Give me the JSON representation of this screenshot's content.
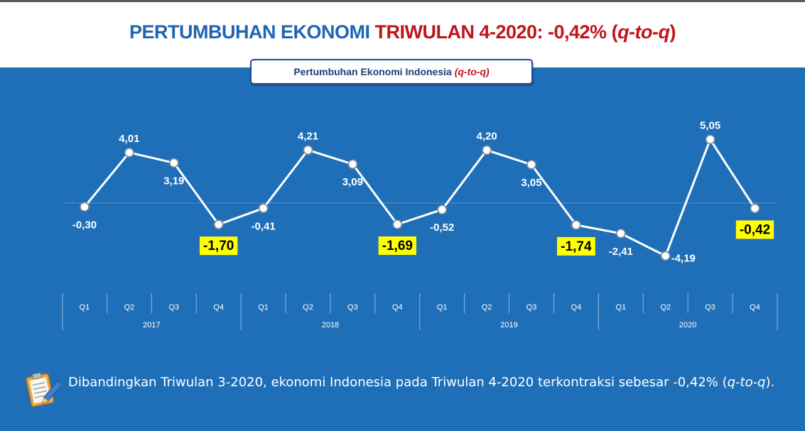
{
  "header": {
    "title_part1": "PERTUMBUHAN EKONOMI",
    "title_part2": " TRIWULAN 4-2020: -0,42% (",
    "title_part3": "q-to-q",
    "title_part4": ")"
  },
  "subtitle": {
    "text": "Pertumbuhan Ekonomi Indonesia ",
    "suffix": "(q-to-q)"
  },
  "chart_data": {
    "type": "line",
    "title": "Pertumbuhan Ekonomi Indonesia (q-to-q)",
    "years": [
      "2017",
      "2018",
      "2019",
      "2020"
    ],
    "categories": [
      "Q1",
      "Q2",
      "Q3",
      "Q4",
      "Q1",
      "Q2",
      "Q3",
      "Q4",
      "Q1",
      "Q2",
      "Q3",
      "Q4",
      "Q1",
      "Q2",
      "Q3",
      "Q4"
    ],
    "values": [
      -0.3,
      4.01,
      3.19,
      -1.7,
      -0.41,
      4.21,
      3.09,
      -1.69,
      -0.52,
      4.2,
      3.05,
      -1.74,
      -2.41,
      -4.19,
      5.05,
      -0.42
    ],
    "labels": [
      "-0,30",
      "4,01",
      "3,19",
      "-1,70",
      "-0,41",
      "4,21",
      "3,09",
      "-1,69",
      "-0,52",
      "4,20",
      "3,05",
      "-1,74",
      "-2,41",
      "-4,19",
      "5,05",
      "-0,42"
    ],
    "highlighted": [
      3,
      7,
      11,
      15
    ],
    "colors": {
      "line": "#ffffff",
      "background": "#1f6fb8",
      "highlight": "#ffff00",
      "title_blue": "#1f65b4",
      "title_red": "#c0141b"
    },
    "grid": false
  },
  "note": {
    "icon": "clipboard-pencil-icon",
    "text_main": "Dibandingkan Triwulan 3-2020, ekonomi Indonesia pada Triwulan 4-2020 terkontraksi sebesar -0,42% (",
    "text_italic": "q-to-q",
    "text_end": ")."
  }
}
